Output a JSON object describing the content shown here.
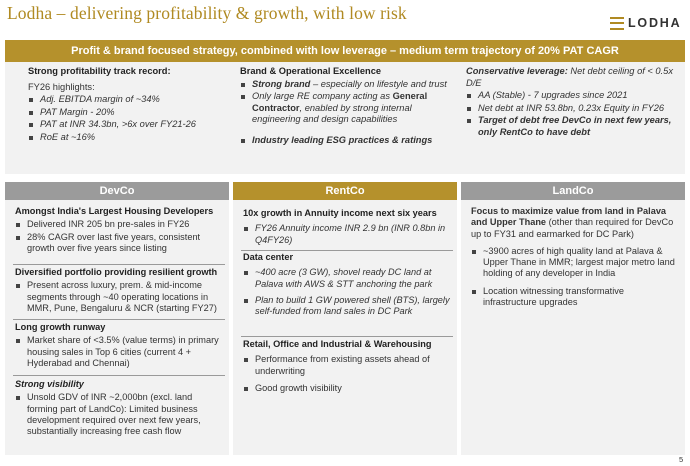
{
  "header": {
    "title": "Lodha – delivering profitability & growth, with low risk",
    "logo_text": "LODHA",
    "logo_icon": "lodha-logo-icon"
  },
  "banner": "Profit & brand focused strategy, combined with low leverage – medium term trajectory of 20% PAT CAGR",
  "top": {
    "col1": {
      "heading": "Strong profitability track record:",
      "subheading": "FY26 highlights:",
      "items": [
        "Adj. EBITDA margin of ~34%",
        "PAT Margin - 20%",
        "PAT at INR 34.3bn, >6x over FY21-26",
        "RoE at ~16%"
      ]
    },
    "col2": {
      "heading": "Brand & Operational Excellence",
      "item1_bold": "Strong brand",
      "item1_rest": " – especially on lifestyle and trust",
      "item2_a": "Only large RE company acting as ",
      "item2_bold": "General Contractor",
      "item2_b": ", enabled by strong internal engineering and design capabilities",
      "item3": "Industry leading ESG practices & ratings"
    },
    "col3": {
      "heading_bold": "Conservative leverage:",
      "heading_rest": " Net debt ceiling of < 0.5x D/E",
      "items": [
        "AA (Stable) - 7 upgrades since 2021",
        "Net debt at INR 53.8bn, 0.23x Equity in FY26"
      ],
      "item_bold": "Target of debt free DevCo in next few years, only RentCo to have debt"
    }
  },
  "devco": {
    "title": "DevCo",
    "s1": {
      "heading": "Amongst India's Largest Housing Developers",
      "items": [
        "Delivered INR 205 bn pre-sales in FY26",
        "28% CAGR over last five years, consistent growth over five years since listing"
      ]
    },
    "s2": {
      "heading": "Diversified portfolio providing resilient growth",
      "items": [
        "Present across luxury, prem. & mid-income segments through ~40 operating locations in MMR, Pune, Bengaluru & NCR (starting FY27)"
      ]
    },
    "s3": {
      "heading": "Long growth runway",
      "items": [
        "Market share of <3.5% (value terms) in primary housing sales in Top 6 cities (current 4 + Hyderabad and Chennai)"
      ]
    },
    "s4": {
      "heading": "Strong visibility",
      "items": [
        "Unsold GDV of INR ~2,000bn (excl. land forming part of LandCo): Limited business development required over next few years, substantially increasing free cash flow"
      ]
    }
  },
  "rentco": {
    "title": "RentCo",
    "s1": {
      "heading": "10x growth in Annuity income next six years",
      "items": [
        "FY26 Annuity income INR 2.9 bn (INR 0.8bn in Q4FY26)"
      ]
    },
    "s2": {
      "heading": "Data center",
      "items": [
        "~400 acre (3 GW), shovel ready DC land at Palava with AWS & STT anchoring the park",
        "Plan to build 1 GW powered shell (BTS), largely self-funded from land sales in DC Park"
      ]
    },
    "s3": {
      "heading": "Retail, Office and Industrial & Warehousing",
      "items": [
        "Performance from existing assets ahead of underwriting",
        "Good growth visibility"
      ]
    }
  },
  "landco": {
    "title": "LandCo",
    "heading_bold": "Focus to maximize value from land in Palava and Upper Thane",
    "heading_rest": " (other than required for DevCo up to FY31 and earmarked for DC Park)",
    "items": [
      "~3900 acres of high quality land at Palava & Upper Thane in MMR; largest major metro land holding of any developer in India",
      "Location witnessing transformative infrastructure upgrades"
    ]
  },
  "page_number": "5"
}
